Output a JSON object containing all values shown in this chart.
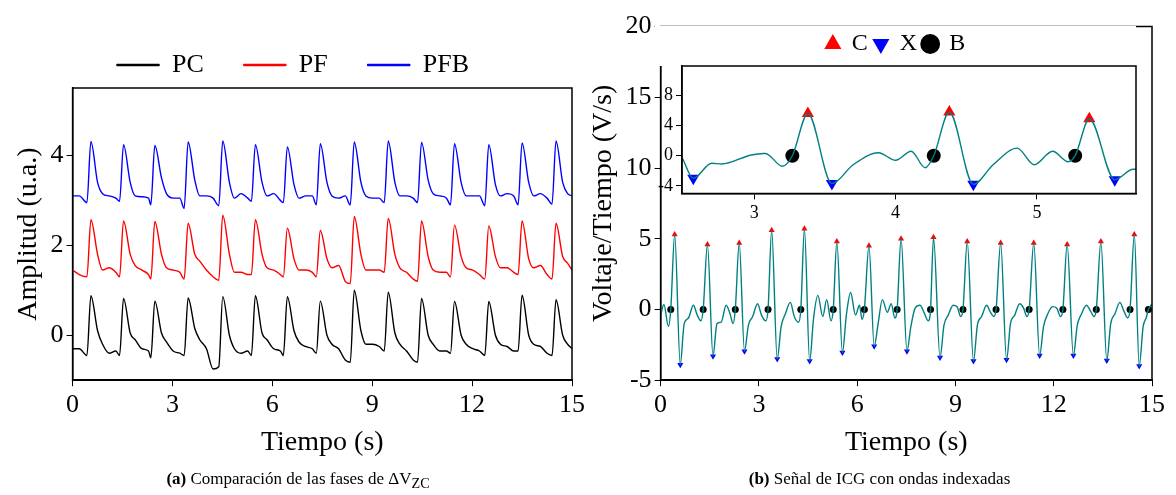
{
  "chart_data": [
    {
      "type": "line",
      "title": "(a) Comparación de las fases de ΔV$_{Z}$$_{C}$",
      "xlabel": "Tiempo (s)",
      "ylabel": "Amplitud (u.a.)",
      "xlim": [
        0,
        15
      ],
      "xticks": [
        0,
        3,
        6,
        9,
        12,
        15
      ],
      "ylim": [
        -1,
        5.5
      ],
      "yticks": [
        0,
        2,
        4
      ],
      "legend": "top",
      "marker": "none",
      "x": [
        0,
        0.2,
        0.43,
        0.55,
        0.75,
        0.9,
        1.1,
        1.3,
        1.41,
        1.53,
        1.73,
        1.88,
        2.08,
        2.28,
        2.35,
        2.47,
        2.67,
        2.82,
        3.02,
        3.22,
        3.35,
        3.47,
        3.67,
        3.82,
        4.02,
        4.22,
        4.39,
        4.51,
        4.71,
        4.86,
        5.06,
        5.26,
        5.37,
        5.49,
        5.69,
        5.84,
        6.04,
        6.24,
        6.33,
        6.45,
        6.65,
        6.8,
        7.0,
        7.2,
        7.32,
        7.44,
        7.64,
        7.79,
        7.99,
        8.19,
        8.34,
        8.46,
        8.66,
        8.81,
        9.01,
        9.21,
        9.36,
        9.48,
        9.68,
        9.83,
        10.03,
        10.23,
        10.36,
        10.48,
        10.68,
        10.83,
        11.03,
        11.23,
        11.35,
        11.47,
        11.67,
        11.82,
        12.02,
        12.22,
        12.38,
        12.5,
        12.7,
        12.85,
        13.05,
        13.25,
        13.38,
        13.5,
        13.7,
        13.85,
        14.05,
        14.25,
        14.4,
        14.52,
        14.72,
        14.87,
        15
      ],
      "series": [
        {
          "name": "PC",
          "color": "#000000",
          "values": [
            -0.3,
            -0.3,
            -0.45,
            0.88,
            0.1,
            -0.2,
            -0.4,
            -0.35,
            -0.45,
            0.82,
            0.05,
            -0.1,
            -0.3,
            -0.35,
            -0.5,
            0.76,
            0.05,
            -0.15,
            -0.35,
            -0.4,
            -0.45,
            0.83,
            0.15,
            -0.1,
            -0.3,
            -0.75,
            -0.7,
            0.86,
            0.0,
            -0.3,
            -0.4,
            -0.35,
            -0.45,
            0.88,
            0.05,
            -0.1,
            -0.3,
            -0.35,
            -0.45,
            0.86,
            0.1,
            -0.15,
            -0.25,
            -0.3,
            -0.4,
            0.76,
            0.0,
            -0.2,
            -0.3,
            -0.55,
            -0.6,
            1.0,
            0.1,
            -0.2,
            -0.2,
            -0.25,
            -0.35,
            0.96,
            0.05,
            -0.2,
            -0.35,
            -0.55,
            -0.6,
            0.82,
            0.0,
            -0.2,
            -0.35,
            -0.35,
            -0.4,
            0.75,
            0.0,
            -0.2,
            -0.3,
            -0.35,
            -0.45,
            0.75,
            0.0,
            -0.2,
            -0.25,
            -0.35,
            -0.35,
            0.89,
            0.0,
            -0.2,
            -0.25,
            -0.4,
            -0.45,
            0.79,
            0.0,
            -0.2,
            -0.3
          ]
        },
        {
          "name": "PF",
          "color": "#ff0000",
          "values": [
            1.45,
            1.35,
            1.3,
            2.57,
            1.8,
            1.45,
            1.5,
            1.4,
            1.3,
            2.54,
            1.8,
            1.55,
            1.45,
            1.35,
            1.25,
            2.53,
            1.8,
            1.5,
            1.45,
            1.4,
            1.25,
            2.49,
            1.8,
            1.65,
            1.45,
            1.3,
            1.22,
            2.67,
            1.8,
            1.4,
            1.4,
            1.35,
            1.35,
            2.57,
            1.8,
            1.5,
            1.45,
            1.35,
            1.3,
            2.38,
            1.7,
            1.45,
            1.45,
            1.4,
            1.3,
            2.33,
            1.7,
            1.5,
            1.55,
            1.2,
            1.15,
            2.64,
            1.8,
            1.45,
            1.45,
            1.45,
            1.4,
            2.6,
            1.8,
            1.5,
            1.4,
            1.25,
            1.2,
            2.54,
            1.75,
            1.45,
            1.4,
            1.4,
            1.3,
            2.45,
            1.75,
            1.5,
            1.45,
            1.35,
            1.25,
            2.43,
            1.75,
            1.5,
            1.5,
            1.4,
            1.35,
            2.54,
            1.7,
            1.5,
            1.55,
            1.35,
            1.25,
            2.49,
            1.75,
            1.6,
            1.45
          ]
        },
        {
          "name": "PFB",
          "color": "#0000ff",
          "values": [
            3.1,
            3.1,
            2.95,
            4.31,
            3.4,
            3.15,
            3.1,
            3.05,
            2.98,
            4.24,
            3.4,
            3.1,
            3.08,
            3.05,
            2.9,
            4.22,
            3.5,
            3.15,
            3.05,
            3.05,
            2.82,
            4.3,
            3.45,
            3.1,
            3.1,
            3.05,
            2.88,
            4.32,
            3.4,
            3.05,
            3.15,
            3.05,
            2.98,
            4.24,
            3.4,
            3.1,
            3.15,
            3.0,
            2.95,
            4.19,
            3.35,
            3.05,
            3.1,
            3.1,
            2.9,
            4.26,
            3.4,
            3.1,
            3.05,
            3.1,
            2.9,
            4.3,
            3.4,
            3.1,
            3.05,
            3.05,
            2.95,
            4.32,
            3.4,
            3.1,
            3.1,
            3.05,
            2.95,
            4.29,
            3.45,
            3.15,
            3.1,
            3.05,
            2.9,
            4.26,
            3.4,
            3.1,
            3.1,
            3.1,
            2.88,
            4.24,
            3.35,
            3.1,
            3.15,
            3.1,
            2.9,
            4.28,
            3.4,
            3.1,
            3.15,
            3.05,
            2.92,
            4.32,
            3.4,
            3.15,
            3.1
          ]
        }
      ]
    },
    {
      "type": "line",
      "title": "(b) Señal de ICG con ondas indexadas",
      "xlabel": "Tiempo (s)",
      "ylabel": "Voltaje/Tiempo (V/s)",
      "xlim": [
        0,
        15
      ],
      "xticks": [
        0,
        3,
        6,
        9,
        12,
        15
      ],
      "ylim": [
        -5,
        20
      ],
      "yticks": [
        -5,
        0,
        5,
        10,
        15,
        20
      ],
      "series": [
        {
          "type": "line",
          "color": "#008080",
          "marker": "none",
          "x": [
            0,
            0.1,
            0.24,
            0.31,
            0.43,
            0.6,
            0.72,
            0.85,
            1.0,
            1.12,
            1.23,
            1.3,
            1.43,
            1.6,
            1.72,
            1.85,
            2.0,
            2.12,
            2.21,
            2.28,
            2.4,
            2.56,
            2.68,
            2.81,
            2.96,
            3.08,
            3.21,
            3.28,
            3.39,
            3.56,
            3.68,
            3.81,
            3.96,
            4.08,
            4.21,
            4.28,
            4.39,
            4.55,
            4.67,
            4.8,
            4.95,
            5.07,
            5.2,
            5.27,
            5.38,
            5.55,
            5.67,
            5.8,
            5.95,
            6.07,
            6.15,
            6.22,
            6.36,
            6.52,
            6.64,
            6.77,
            6.92,
            7.04,
            7.15,
            7.22,
            7.34,
            7.52,
            7.64,
            7.77,
            7.92,
            8.04,
            8.17,
            8.24,
            8.33,
            8.53,
            8.65,
            8.78,
            8.93,
            9.05,
            9.16,
            9.23,
            9.36,
            9.55,
            9.67,
            9.8,
            9.95,
            10.07,
            10.17,
            10.24,
            10.38,
            10.56,
            10.68,
            10.81,
            10.96,
            11.08,
            11.18,
            11.25,
            11.39,
            11.57,
            11.69,
            11.82,
            11.97,
            12.09,
            12.21,
            12.28,
            12.41,
            12.6,
            12.72,
            12.85,
            13.0,
            13.12,
            13.23,
            13.3,
            13.44,
            13.62,
            13.74,
            13.87,
            14.02,
            14.14,
            14.26,
            14.33,
            14.46,
            14.61,
            14.73,
            14.82,
            14.89,
            15
          ],
          "values": [
            -0.4,
            0.35,
            -1.2,
            0,
            5.3,
            -3.9,
            -1.0,
            -0.6,
            0.3,
            -0.4,
            -0.8,
            0,
            4.6,
            -3.3,
            -1.0,
            -0.9,
            0.3,
            -0.3,
            -1.0,
            0,
            4.7,
            -2.95,
            -1.1,
            -0.5,
            0.4,
            -0.4,
            -0.8,
            0,
            5.6,
            -3.5,
            -1.2,
            -0.3,
            0.5,
            -0.5,
            -0.9,
            0,
            5.7,
            -3.65,
            -0.6,
            1.0,
            -0.5,
            0.7,
            -0.8,
            0,
            4.8,
            -3.05,
            -0.4,
            1.2,
            -0.4,
            0.3,
            -0.7,
            0,
            4.5,
            -2.6,
            -1.0,
            0.7,
            -0.2,
            0.4,
            -0.6,
            0,
            5.0,
            -2.95,
            -1.2,
            0.1,
            0.3,
            -0.2,
            -0.8,
            0,
            5.1,
            -3.4,
            -1.1,
            -0.4,
            0.3,
            0.2,
            -0.5,
            0,
            4.8,
            -3.65,
            -1.1,
            -0.5,
            0.3,
            -0.2,
            -0.5,
            0,
            4.7,
            -3.55,
            -1.0,
            -0.4,
            0.4,
            0.1,
            -0.5,
            0,
            4.7,
            -3.25,
            -1.2,
            -0.3,
            0.2,
            0.1,
            -0.5,
            0,
            4.6,
            -3.25,
            -1.1,
            -0.3,
            0.3,
            -0.1,
            -0.5,
            0,
            4.8,
            -3.6,
            -1.0,
            -0.3,
            0.5,
            -0.1,
            -0.6,
            0,
            5.3,
            -4.0,
            -1.2,
            -0.6,
            0,
            0.4
          ]
        },
        {
          "type": "scatter",
          "color": "#ff0000",
          "marker": "triangle",
          "x": [
            0.43,
            1.43,
            2.4,
            3.39,
            4.39,
            5.38,
            6.36,
            7.34,
            8.33,
            9.36,
            10.38,
            11.39,
            12.41,
            13.44,
            14.46
          ],
          "values": [
            5.3,
            4.6,
            4.7,
            5.6,
            5.7,
            4.8,
            4.5,
            5.0,
            5.1,
            4.8,
            4.7,
            4.7,
            4.6,
            4.8,
            5.3
          ]
        },
        {
          "type": "scatter",
          "color": "#0000ff",
          "marker": "triangle-down",
          "x": [
            0.6,
            1.6,
            2.56,
            3.56,
            4.55,
            5.55,
            6.52,
            7.52,
            8.53,
            9.55,
            10.56,
            11.57,
            12.6,
            13.62,
            14.61
          ],
          "values": [
            -3.9,
            -3.3,
            -2.95,
            -3.5,
            -3.65,
            -3.05,
            -2.6,
            -2.95,
            -3.4,
            -3.65,
            -3.55,
            -3.25,
            -3.25,
            -3.6,
            -4.0
          ]
        },
        {
          "type": "scatter",
          "color": "#000000",
          "marker": "circle",
          "x": [
            0.31,
            1.3,
            2.28,
            3.28,
            4.28,
            5.27,
            6.22,
            7.22,
            8.24,
            9.23,
            10.24,
            11.25,
            12.28,
            13.3,
            14.33,
            14.89
          ],
          "values": [
            0,
            0,
            0,
            0,
            0,
            0,
            0,
            0,
            0,
            0,
            0,
            0,
            0,
            0,
            0,
            0
          ]
        }
      ]
    },
    {
      "type": "line",
      "xlim": [
        2.49,
        5.7
      ],
      "xticks": [
        3,
        4,
        5
      ],
      "ylim": [
        -5,
        11.9
      ],
      "yticks": [
        -4,
        0,
        4,
        8
      ],
      "legend": "top",
      "series": [
        {
          "type": "line",
          "color": "#008080",
          "marker": "none",
          "x": [
            2.49,
            2.57,
            2.7,
            2.77,
            2.98,
            3.08,
            3.2,
            3.27,
            3.38,
            3.55,
            3.7,
            3.88,
            4.0,
            4.11,
            4.21,
            4.27,
            4.38,
            4.55,
            4.69,
            4.86,
            4.98,
            5.11,
            5.22,
            5.27,
            5.37,
            5.55,
            5.68,
            5.7
          ],
          "values": [
            -0.2,
            -3.0,
            -1.0,
            -1.1,
            0.1,
            0.3,
            -1.4,
            0,
            5.6,
            -3.7,
            -1.2,
            0.4,
            -0.6,
            0.6,
            -1.6,
            0,
            5.8,
            -3.8,
            -1.2,
            1.0,
            -1.2,
            0.6,
            -0.8,
            0,
            4.9,
            -3.2,
            -1.8,
            -1.8
          ]
        },
        {
          "type": "scatter",
          "name": "C",
          "color": "#ff0000",
          "marker": "triangle",
          "x": [
            3.38,
            4.38,
            5.37
          ],
          "values": [
            5.6,
            5.8,
            4.9
          ]
        },
        {
          "type": "scatter",
          "name": "X",
          "color": "#0000ff",
          "marker": "triangle-down",
          "x": [
            2.57,
            3.55,
            4.55,
            5.55
          ],
          "values": [
            -3.0,
            -3.7,
            -3.8,
            -3.2
          ]
        },
        {
          "type": "scatter",
          "name": "B",
          "color": "#000000",
          "marker": "circle",
          "x": [
            3.27,
            4.27,
            5.27
          ],
          "values": [
            0,
            0,
            0
          ]
        }
      ]
    }
  ]
}
